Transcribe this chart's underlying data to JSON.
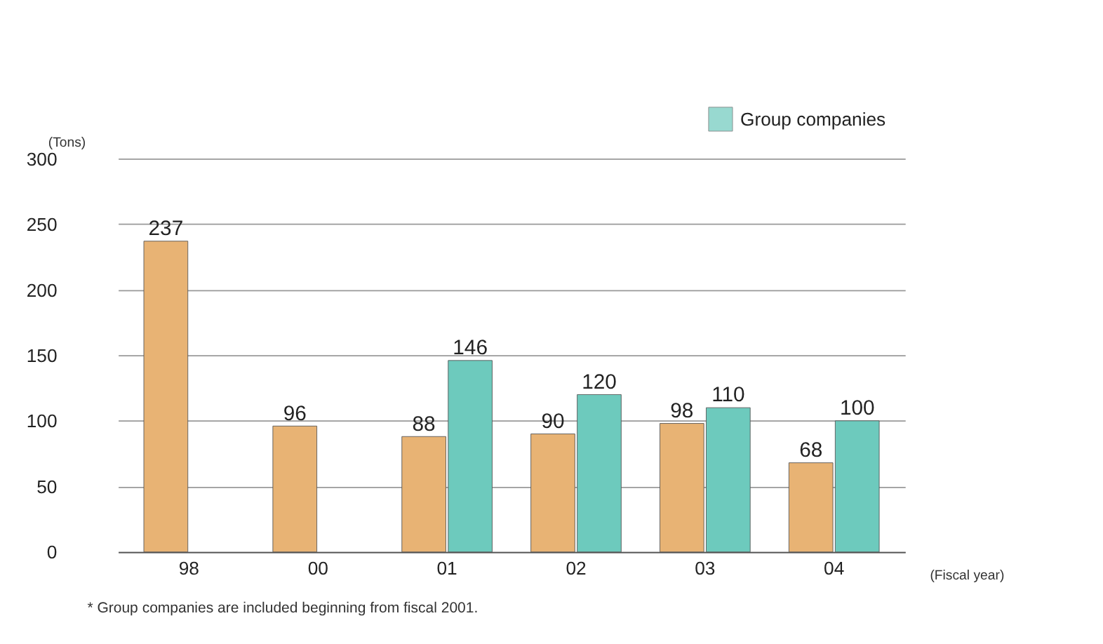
{
  "chart_data": {
    "type": "bar",
    "categories": [
      "98",
      "00",
      "01",
      "02",
      "03",
      "04"
    ],
    "series": [
      {
        "color": "#e8b374",
        "values": [
          237,
          96,
          88,
          90,
          98,
          68
        ]
      },
      {
        "name": "Group companies",
        "color": "#6dcabd",
        "values": [
          null,
          null,
          146,
          120,
          110,
          100
        ]
      }
    ],
    "ylim": [
      0,
      300
    ],
    "yticks": [
      0,
      50,
      100,
      150,
      200,
      250,
      300
    ],
    "grid": "y",
    "data_labels": true,
    "legend": "top right",
    "ylabel": "(Tons)",
    "xlabel": "(Fiscal year)",
    "annotations": [
      "* Group companies are included beginning from fiscal 2001."
    ]
  }
}
